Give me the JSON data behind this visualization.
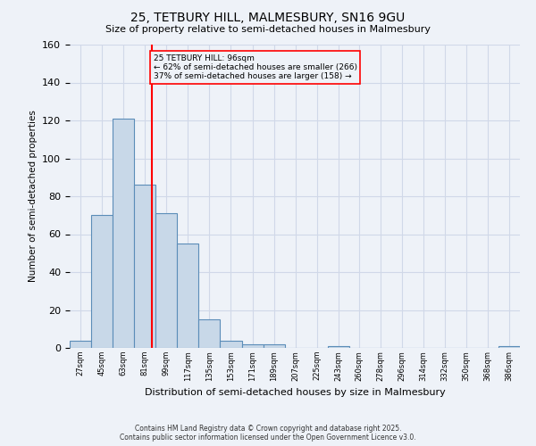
{
  "title1": "25, TETBURY HILL, MALMESBURY, SN16 9GU",
  "title2": "Size of property relative to semi-detached houses in Malmesbury",
  "xlabel": "Distribution of semi-detached houses by size in Malmesbury",
  "ylabel": "Number of semi-detached properties",
  "bin_labels": [
    "27sqm",
    "45sqm",
    "63sqm",
    "81sqm",
    "99sqm",
    "117sqm",
    "135sqm",
    "153sqm",
    "171sqm",
    "189sqm",
    "207sqm",
    "225sqm",
    "243sqm",
    "260sqm",
    "278sqm",
    "296sqm",
    "314sqm",
    "332sqm",
    "350sqm",
    "368sqm",
    "386sqm"
  ],
  "bin_edges": [
    27,
    45,
    63,
    81,
    99,
    117,
    135,
    153,
    171,
    189,
    207,
    225,
    243,
    260,
    278,
    296,
    314,
    332,
    350,
    368,
    386
  ],
  "bar_heights": [
    4,
    70,
    121,
    86,
    71,
    55,
    15,
    4,
    2,
    2,
    0,
    0,
    1,
    0,
    0,
    0,
    0,
    0,
    0,
    0,
    1
  ],
  "bar_color": "#c8d8e8",
  "bar_edge_color": "#5b8db8",
  "vline_x": 96,
  "vline_color": "red",
  "annotation_title": "25 TETBURY HILL: 96sqm",
  "annotation_line1": "← 62% of semi-detached houses are smaller (266)",
  "annotation_line2": "37% of semi-detached houses are larger (158) →",
  "annotation_box_color": "red",
  "ylim": [
    0,
    160
  ],
  "yticks": [
    0,
    20,
    40,
    60,
    80,
    100,
    120,
    140,
    160
  ],
  "grid_color": "#d0d8e8",
  "bg_color": "#eef2f8",
  "footnote1": "Contains HM Land Registry data © Crown copyright and database right 2025.",
  "footnote2": "Contains public sector information licensed under the Open Government Licence v3.0."
}
